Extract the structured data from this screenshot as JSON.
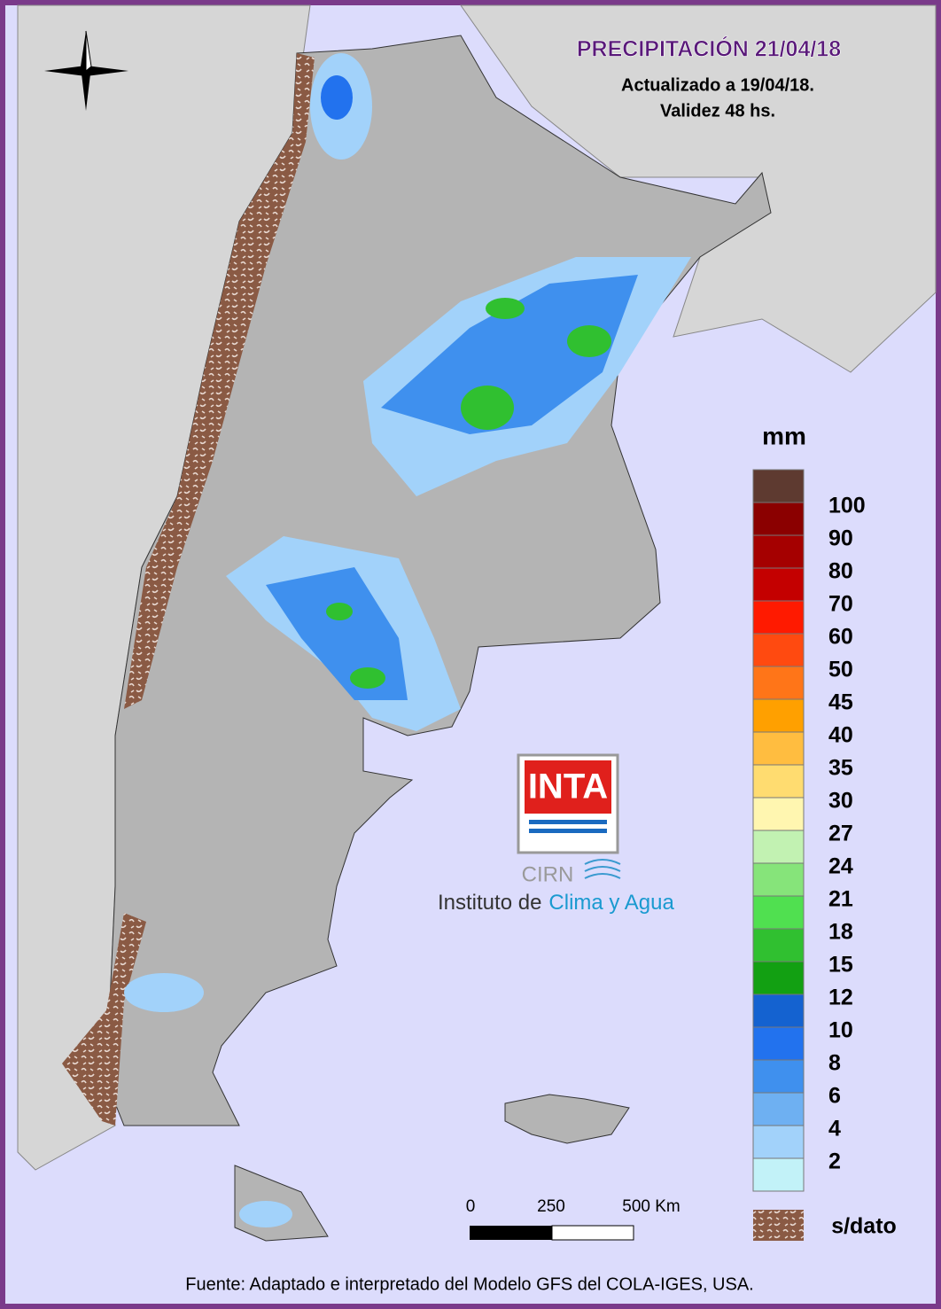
{
  "title": "PRECIPITACIÓN 21/04/18",
  "subtitle": [
    "Actualizado a 19/04/18.",
    "Validez 48 hs."
  ],
  "legend": {
    "unit": "mm",
    "colors": [
      "#5e3a30",
      "#8b0000",
      "#a50000",
      "#c40000",
      "#ff1a00",
      "#ff4a10",
      "#ff7518",
      "#ffa000",
      "#ffbd40",
      "#ffdc70",
      "#fff6b0",
      "#c2f2b2",
      "#86e47a",
      "#50e050",
      "#30c030",
      "#12a012",
      "#1462d0",
      "#2272ee",
      "#3f90ee",
      "#6eb0f2",
      "#a2d2fa",
      "#c2f2f8"
    ],
    "labels": [
      "100",
      "90",
      "80",
      "70",
      "60",
      "50",
      "45",
      "40",
      "35",
      "30",
      "27",
      "24",
      "21",
      "18",
      "15",
      "12",
      "10",
      "8",
      "6",
      "4",
      "2"
    ],
    "no_data": "s/dato"
  },
  "scale_bar": [
    "0",
    "250",
    "500 Km"
  ],
  "logo": {
    "brand": "INTA",
    "unit": "CIRN",
    "institute": "Instituto de",
    "institute_highlight": "Clima y Agua"
  },
  "source": "Fuente: Adaptado e interpretado del Modelo GFS del COLA-IGES, USA."
}
